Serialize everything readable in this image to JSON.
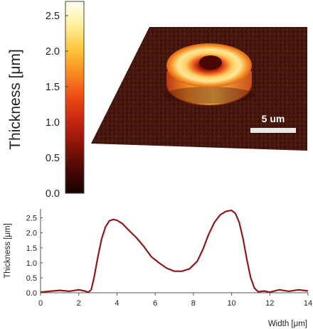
{
  "colorbar": {
    "label": "Thickness [μm]",
    "ticks": [
      "0.0",
      "0.5",
      "1.0",
      "1.5",
      "2.0",
      "2.5"
    ],
    "tick_values": [
      0.0,
      0.5,
      1.0,
      1.5,
      2.0,
      2.5
    ],
    "range": [
      0,
      2.7
    ],
    "colormap": [
      "#1a0000",
      "#4a0806",
      "#8a1408",
      "#c42610",
      "#ee4a14",
      "#f98a22",
      "#fcc63a",
      "#fff09a",
      "#fffff2"
    ]
  },
  "afm_image": {
    "scale_bar_label": "5 um",
    "feature": "ring-shaped particle"
  },
  "chart_data": {
    "type": "line",
    "title": "",
    "xlabel": "Width [μm]",
    "ylabel": "Thickness [μm]",
    "xlim": [
      0,
      14
    ],
    "ylim": [
      0,
      2.8
    ],
    "xticks": [
      "0",
      "2",
      "4",
      "6",
      "8",
      "10",
      "12",
      "14"
    ],
    "yticks": [
      "0.0",
      "0.5",
      "1.0",
      "1.5",
      "2.0",
      "2.5"
    ],
    "line_color": "#8b1a1a",
    "series": [
      {
        "x": [
          0,
          0.5,
          1.0,
          1.5,
          2.0,
          2.3,
          2.5,
          2.65,
          2.8,
          3.0,
          3.2,
          3.4,
          3.6,
          3.8,
          4.0,
          4.3,
          4.6,
          5.0,
          5.4,
          5.8,
          6.2,
          6.6,
          7.0,
          7.4,
          7.8,
          8.2,
          8.5,
          8.8,
          9.1,
          9.4,
          9.7,
          10.0,
          10.2,
          10.4,
          10.6,
          10.8,
          11.0,
          11.2,
          11.4,
          11.7,
          12.0,
          12.5,
          13.0,
          13.5,
          14.0
        ],
        "y": [
          0.02,
          0.05,
          0.08,
          0.05,
          0.1,
          0.06,
          0.02,
          0.1,
          0.5,
          1.2,
          1.8,
          2.2,
          2.4,
          2.45,
          2.42,
          2.3,
          2.1,
          1.85,
          1.55,
          1.2,
          1.0,
          0.82,
          0.72,
          0.72,
          0.8,
          1.05,
          1.45,
          1.95,
          2.35,
          2.6,
          2.72,
          2.75,
          2.65,
          2.35,
          1.8,
          1.1,
          0.5,
          0.15,
          0.03,
          0.06,
          0.02,
          0.1,
          0.05,
          0.1,
          0.06
        ]
      }
    ],
    "grid": false
  }
}
